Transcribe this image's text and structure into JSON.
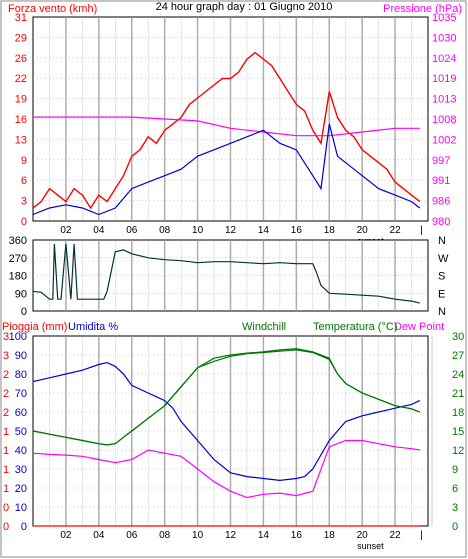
{
  "title": "24 hour graph day : 01 Giugno 2010",
  "x_ticks": [
    "02",
    "04",
    "06",
    "08",
    "10",
    "12",
    "14",
    "16",
    "18",
    "20",
    "22"
  ],
  "sunset_label": "sunset",
  "colors": {
    "wind": "#ff0000",
    "pressure": "#ff00ff",
    "gust_avg": "#0000cc",
    "direction": "#003333",
    "humidity": "#0000cc",
    "windchill": "#007700",
    "temperature": "#007700",
    "dewpoint": "#ff00ff",
    "rain": "#ff0000",
    "grid": "#999999",
    "panel_border": "#000000",
    "background": "#ffffff"
  },
  "chart_data": [
    {
      "type": "line",
      "name": "panel-wind-pressure",
      "left_label": "Forza vento (kmh)",
      "right_label": "Pressione (hPa)",
      "left_ticks": [
        "0",
        "3",
        "6",
        "9",
        "13",
        "16",
        "19",
        "22",
        "26",
        "29",
        "31"
      ],
      "right_ticks": [
        "980",
        "986",
        "991",
        "997",
        "1002",
        "1008",
        "1013",
        "1019",
        "1024",
        "1030",
        "1035"
      ],
      "ylim_left": [
        0,
        31.5
      ],
      "ylim_right": [
        980,
        1035
      ],
      "xlim": [
        0,
        24
      ],
      "series": [
        {
          "color_key": "wind",
          "x": [
            0,
            0.5,
            1,
            1.5,
            2,
            2.5,
            3,
            3.5,
            4,
            4.5,
            5,
            5.5,
            6,
            6.5,
            7,
            7.5,
            8,
            8.5,
            9,
            9.5,
            10,
            10.5,
            11,
            11.5,
            12,
            12.5,
            13,
            13.5,
            14,
            14.5,
            15,
            15.5,
            16,
            16.5,
            17,
            17.5,
            18,
            18.5,
            19,
            19.5,
            20,
            20.5,
            21,
            21.5,
            22,
            22.5,
            23,
            23.5
          ],
          "y": [
            2,
            3,
            5,
            4,
            3,
            5,
            4,
            2,
            4,
            3,
            5,
            7,
            10,
            11,
            13,
            12,
            14,
            15,
            16,
            18,
            19,
            20,
            21,
            22,
            22,
            23,
            25,
            26,
            25,
            24,
            22,
            20,
            18,
            17,
            14,
            12,
            20,
            16,
            14,
            13,
            11,
            10,
            9,
            8,
            6,
            5,
            4,
            3
          ]
        },
        {
          "color_key": "pressure",
          "axis": "right",
          "x": [
            0,
            2,
            4,
            6,
            8,
            10,
            12,
            14,
            16,
            18,
            20,
            22,
            23.5
          ],
          "y": [
            1008,
            1008,
            1008,
            1008,
            1007.5,
            1007,
            1005,
            1004,
            1003,
            1003,
            1004,
            1005,
            1005
          ]
        },
        {
          "color_key": "gust_avg",
          "x": [
            0,
            1,
            2,
            3,
            4,
            5,
            6,
            7,
            8,
            9,
            10,
            11,
            12,
            13,
            14,
            15,
            16,
            17,
            17.5,
            18,
            18.5,
            19,
            20,
            21,
            22,
            23,
            23.5
          ],
          "y": [
            1,
            2,
            2.5,
            2,
            1,
            2,
            5,
            6,
            7,
            8,
            10,
            11,
            12,
            13,
            14,
            12,
            11,
            7,
            5,
            15,
            10,
            9,
            7,
            5,
            4,
            3,
            2
          ]
        }
      ]
    },
    {
      "type": "line",
      "name": "panel-direction",
      "left_ticks": [
        "0",
        "90",
        "180",
        "270",
        "360"
      ],
      "right_ticks": [
        "N",
        "E",
        "S",
        "W",
        "N"
      ],
      "ylim_left": [
        0,
        360
      ],
      "xlim": [
        0,
        24
      ],
      "series": [
        {
          "color_key": "direction",
          "x": [
            0,
            0.5,
            1,
            1.2,
            1.3,
            1.5,
            1.7,
            2,
            2.3,
            2.5,
            2.7,
            3,
            3.5,
            4,
            4.3,
            4.5,
            5,
            5.5,
            6,
            7,
            8,
            9,
            10,
            11,
            12,
            13,
            14,
            15,
            16,
            17,
            17.2,
            17.5,
            18,
            19,
            20,
            21,
            22,
            23,
            23.5
          ],
          "y": [
            100,
            95,
            60,
            60,
            340,
            60,
            60,
            340,
            60,
            340,
            60,
            60,
            60,
            60,
            60,
            100,
            300,
            310,
            290,
            270,
            260,
            255,
            245,
            250,
            250,
            245,
            240,
            245,
            240,
            240,
            200,
            130,
            90,
            85,
            80,
            75,
            60,
            50,
            40
          ]
        }
      ]
    },
    {
      "type": "line",
      "name": "panel-temp-humidity",
      "header_labels": {
        "rain": "Pioggia (mm)",
        "humidity": "Umidita %",
        "windchill": "Windchill",
        "temperature": "Temperatura (°C)",
        "dewpoint": "Dew Point"
      },
      "left_ticks_rain": [
        "0",
        "0",
        "1",
        "1",
        "1",
        "1",
        "2",
        "2",
        "2",
        "3",
        "3"
      ],
      "left_ticks_humidity": [
        "0",
        "10",
        "20",
        "30",
        "40",
        "50",
        "60",
        "70",
        "80",
        "90",
        "100"
      ],
      "right_ticks": [
        "0",
        "3",
        "6",
        "9",
        "12",
        "15",
        "18",
        "21",
        "24",
        "27",
        "30"
      ],
      "ylim_left": [
        0,
        100
      ],
      "ylim_right": [
        0,
        30
      ],
      "xlim": [
        0,
        24
      ],
      "series": [
        {
          "color_key": "humidity",
          "axis": "left",
          "x": [
            0,
            1,
            2,
            3,
            4,
            4.5,
            5,
            5.5,
            6,
            7,
            7.5,
            8,
            8.5,
            9,
            10,
            11,
            12,
            13,
            14,
            15,
            16,
            16.5,
            17,
            18,
            19,
            20,
            21,
            22,
            23,
            23.5
          ],
          "y": [
            76,
            78,
            80,
            82,
            85,
            86,
            84,
            80,
            74,
            70,
            68,
            66,
            62,
            55,
            45,
            35,
            28,
            26,
            25,
            24,
            25,
            26,
            30,
            45,
            55,
            58,
            60,
            62,
            64,
            66
          ]
        },
        {
          "color_key": "temperature",
          "axis": "right",
          "x": [
            0,
            1,
            2,
            3,
            4,
            4.5,
            5,
            5.5,
            6,
            7,
            8,
            9,
            10,
            11,
            12,
            13,
            14,
            15,
            16,
            17,
            18,
            18.5,
            19,
            20,
            21,
            22,
            23,
            23.5
          ],
          "y": [
            15,
            14.5,
            14,
            13.5,
            13,
            12.8,
            13,
            14,
            15,
            17,
            19,
            22,
            25,
            26.5,
            27,
            27.3,
            27.5,
            27.8,
            28,
            27.5,
            26.5,
            24,
            22.5,
            21,
            20,
            19,
            18.5,
            18
          ]
        },
        {
          "color_key": "windchill",
          "axis": "right",
          "x": [
            0,
            1,
            2,
            3,
            4,
            4.5,
            5,
            5.5,
            6,
            7,
            8,
            9,
            10,
            11,
            12,
            13,
            14,
            15,
            16,
            17,
            18,
            18.5,
            19,
            20,
            21,
            22,
            23,
            23.5
          ],
          "y": [
            15,
            14.5,
            14,
            13.5,
            13,
            12.8,
            13,
            14,
            15,
            17,
            19,
            22,
            25,
            26,
            26.8,
            27.2,
            27.4,
            27.6,
            27.8,
            27.4,
            26.3,
            24,
            22.5,
            21,
            20,
            19,
            18.5,
            18
          ]
        },
        {
          "color_key": "dewpoint",
          "axis": "right",
          "x": [
            0,
            1,
            2,
            3,
            4,
            5,
            6,
            7,
            8,
            9,
            10,
            11,
            12,
            13,
            14,
            15,
            16,
            17,
            18,
            19,
            20,
            21,
            22,
            23,
            23.5
          ],
          "y": [
            11.5,
            11.3,
            11.2,
            11,
            10.5,
            10,
            10.5,
            12,
            11.5,
            11,
            9,
            7,
            5.5,
            4.5,
            5,
            5.2,
            4.8,
            5.5,
            12.5,
            13.5,
            13.5,
            13,
            12.5,
            12.2,
            12
          ]
        },
        {
          "color_key": "rain",
          "axis": "left",
          "x": [
            0,
            23.5
          ],
          "y": [
            0,
            0
          ]
        }
      ]
    }
  ]
}
